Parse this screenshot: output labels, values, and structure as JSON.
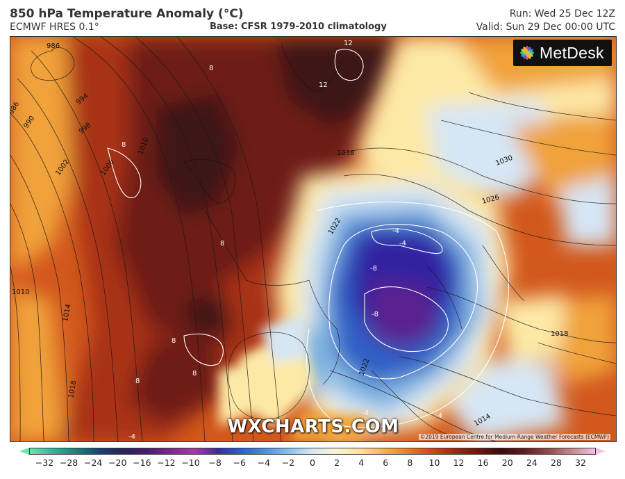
{
  "header": {
    "title": "850 hPa Temperature Anomaly (°C)",
    "model": "ECMWF HRES 0.1°",
    "base": "Base: CFSR 1979-2010 climatology",
    "run": "Run: Wed 25 Dec 12Z",
    "valid": "Valid: Sun 29 Dec 00:00 UTC"
  },
  "logo": {
    "text": "MetDesk"
  },
  "watermark": "WXCHARTS.COM",
  "copyright": "©2019 European Centre for Medium-Range Weather Forecasts (ECMWF)",
  "colorbar": {
    "ticks": [
      "−32",
      "−28",
      "−24",
      "−20",
      "−16",
      "−12",
      "−10",
      "−8",
      "−6",
      "−4",
      "−2",
      "0",
      "2",
      "4",
      "6",
      "8",
      "10",
      "12",
      "16",
      "20",
      "24",
      "28",
      "32"
    ]
  },
  "isobar_labels": [
    "986",
    "986",
    "990",
    "994",
    "998",
    "1002",
    "1006",
    "1010",
    "1010",
    "1014",
    "1018",
    "1030",
    "1026",
    "1022",
    "1038",
    "1018",
    "1022",
    "1014"
  ],
  "anomaly_labels": [
    "12",
    "12",
    "8",
    "8",
    "8",
    "8",
    "8",
    "8",
    "-4",
    "-4",
    "-8",
    "-8",
    "-4",
    "-4",
    "-4"
  ],
  "colors": {
    "deep_warm": "#3e1212",
    "very_warm": "#6e1c12",
    "warm": "#a83217",
    "mild": "#d2581d",
    "slightly_warm": "#f0a23a",
    "near_normal": "#fde9a6",
    "slightly_cold": "#d6e6f4",
    "cold": "#7fb2e0",
    "very_cold": "#2d5fc4",
    "deep_cold": "#3322a0",
    "extreme_cold": "#5a248e"
  }
}
